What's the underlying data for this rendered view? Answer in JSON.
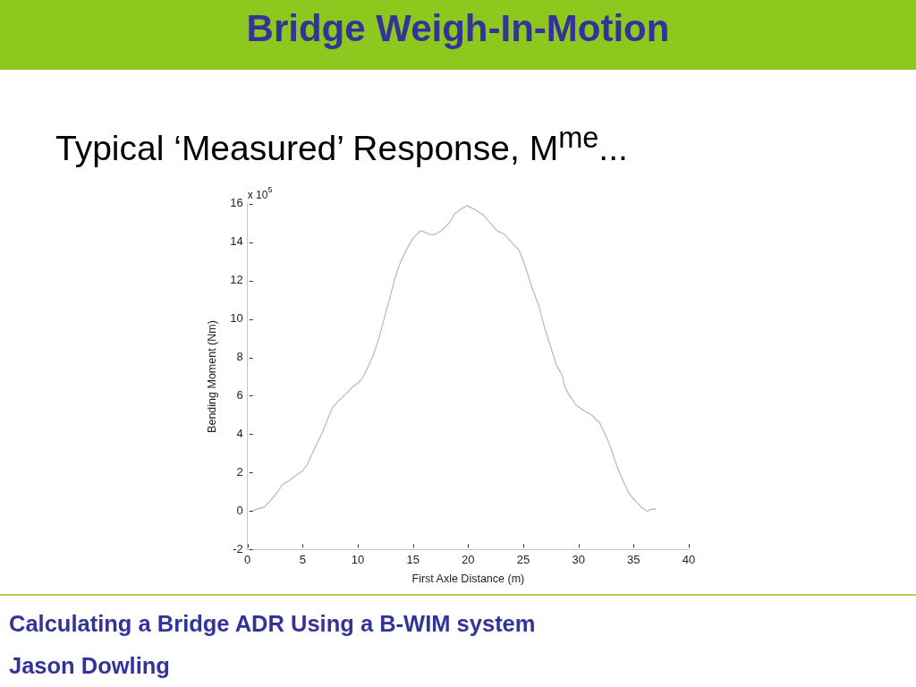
{
  "chart_data": {
    "type": "line",
    "title": "Bridge Weigh-In-Motion",
    "subtitle": "Typical ‘Measured’ Response, M$^{me}$...",
    "xlabel": "First Axle Distance (m)",
    "ylabel": "Bending Moment (Nm)",
    "annotations": [
      "x 10$^{5}$",
      "Calculating a Bridge ADR Using a B-WIM system",
      "Jason Dowling"
    ],
    "x": [
      0.4,
      0.8,
      1.5,
      2.0,
      2.6,
      3.2,
      3.8,
      4.5,
      5.0,
      5.4,
      5.8,
      6.2,
      6.8,
      7.2,
      7.7,
      8.2,
      8.9,
      9.6,
      10.1,
      10.5,
      11.0,
      11.4,
      11.8,
      12.2,
      12.6,
      13.0,
      13.4,
      13.9,
      14.5,
      15.0,
      15.7,
      16.1,
      16.5,
      17.0,
      17.6,
      18.3,
      18.8,
      19.3,
      19.9,
      20.6,
      21.4,
      22.0,
      22.6,
      23.3,
      23.9,
      24.6,
      25.2,
      25.8,
      26.4,
      26.9,
      27.5,
      28.0,
      28.5,
      28.8,
      29.1,
      29.8,
      30.6,
      31.2,
      31.9,
      32.5,
      33.0,
      33.5,
      34.1,
      34.6,
      35.2,
      35.7,
      36.2,
      36.6,
      37.0
    ],
    "values": [
      0.0,
      0.1,
      0.2,
      0.5,
      0.9,
      1.4,
      1.6,
      1.9,
      2.1,
      2.4,
      2.9,
      3.4,
      4.1,
      4.7,
      5.4,
      5.7,
      6.1,
      6.5,
      6.7,
      7.0,
      7.6,
      8.1,
      8.8,
      9.6,
      10.5,
      11.3,
      12.2,
      13.0,
      13.7,
      14.2,
      14.6,
      14.5,
      14.4,
      14.4,
      14.6,
      15.0,
      15.5,
      15.7,
      15.9,
      15.7,
      15.4,
      15.0,
      14.6,
      14.4,
      14.0,
      13.6,
      12.7,
      11.6,
      10.7,
      9.6,
      8.5,
      7.6,
      7.1,
      6.4,
      6.1,
      5.5,
      5.2,
      5.0,
      4.6,
      3.9,
      3.2,
      2.3,
      1.5,
      0.9,
      0.5,
      0.2,
      0.0,
      0.1,
      0.1
    ],
    "color": "#b8b8b8",
    "xlim": [
      0,
      40
    ],
    "xticks": [
      0,
      5,
      10,
      15,
      20,
      25,
      30,
      35,
      40
    ],
    "ylim": [
      -2,
      16
    ],
    "yticks": [
      -2,
      0,
      2,
      4,
      6,
      8,
      10,
      12,
      14,
      16
    ],
    "grid": false,
    "legend": false,
    "marker": "none",
    "line_style": "solid"
  }
}
